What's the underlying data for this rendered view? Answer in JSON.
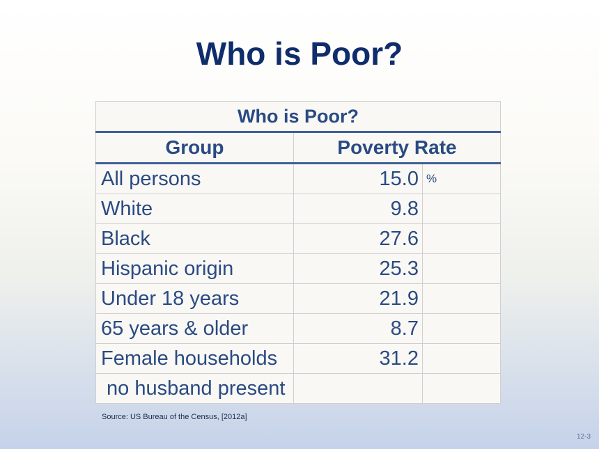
{
  "slide": {
    "title": "Who is Poor?",
    "source": "Source: US Bureau of the Census, [2012a]",
    "number": "12-3"
  },
  "table": {
    "caption": "Who is Poor?",
    "headers": {
      "group": "Group",
      "rate": "Poverty Rate"
    },
    "rows": [
      {
        "group": "All persons",
        "rate": "15.0",
        "unit": "%"
      },
      {
        "group": "White",
        "rate": "9.8",
        "unit": ""
      },
      {
        "group": "Black",
        "rate": "27.6",
        "unit": ""
      },
      {
        "group": "Hispanic origin",
        "rate": "25.3",
        "unit": ""
      },
      {
        "group": "Under 18 years",
        "rate": "21.9",
        "unit": ""
      },
      {
        "group": "65 years & older",
        "rate": "8.7",
        "unit": ""
      },
      {
        "group": "Female households",
        "rate": "31.2",
        "unit": ""
      },
      {
        "group": " no husband present",
        "rate": "",
        "unit": ""
      }
    ]
  }
}
